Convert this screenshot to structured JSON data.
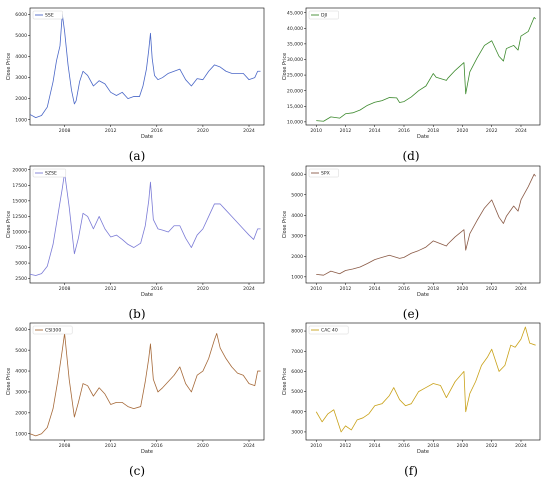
{
  "chart_data": [
    {
      "type": "line",
      "panel_label": "(a)",
      "xlabel": "Date",
      "ylabel": "Close Price",
      "xlim": [
        2005,
        2025.3
      ],
      "ylim": [
        750,
        6300
      ],
      "x_ticks": [
        2008,
        2012,
        2016,
        2020,
        2024
      ],
      "y_ticks": [
        1000,
        2000,
        3000,
        4000,
        5000,
        6000
      ],
      "y_tick_labels": [
        "1000",
        "2000",
        "3000",
        "4000",
        "5000",
        "6000"
      ],
      "legend_position": "top-left",
      "series": [
        {
          "name": "SSE",
          "color": "#4a67c7",
          "x": [
            2005.0,
            2005.5,
            2006.0,
            2006.5,
            2007.0,
            2007.3,
            2007.6,
            2007.8,
            2008.0,
            2008.3,
            2008.6,
            2008.85,
            2009.0,
            2009.3,
            2009.6,
            2010.0,
            2010.5,
            2011.0,
            2011.5,
            2012.0,
            2012.5,
            2013.0,
            2013.5,
            2014.0,
            2014.5,
            2014.8,
            2015.1,
            2015.3,
            2015.45,
            2015.6,
            2015.8,
            2016.1,
            2016.5,
            2017.0,
            2017.5,
            2018.0,
            2018.5,
            2019.0,
            2019.5,
            2020.0,
            2020.5,
            2021.0,
            2021.5,
            2022.0,
            2022.5,
            2023.0,
            2023.5,
            2024.0,
            2024.5,
            2024.75,
            2025.0
          ],
          "values": [
            1250,
            1100,
            1200,
            1600,
            2800,
            3800,
            4500,
            6000,
            5200,
            3600,
            2400,
            1750,
            1900,
            2800,
            3300,
            3100,
            2600,
            2850,
            2700,
            2300,
            2150,
            2300,
            2000,
            2100,
            2100,
            2600,
            3400,
            4300,
            5100,
            3900,
            3100,
            2900,
            3000,
            3200,
            3300,
            3400,
            2900,
            2600,
            2950,
            2900,
            3300,
            3600,
            3500,
            3300,
            3200,
            3200,
            3200,
            2900,
            3000,
            3300,
            3300
          ]
        }
      ]
    },
    {
      "type": "line",
      "panel_label": "(d)",
      "xlabel": "Date",
      "ylabel": "Close Price",
      "xlim": [
        2009.3,
        2025.3
      ],
      "ylim": [
        9000,
        46500
      ],
      "x_ticks": [
        2010,
        2012,
        2014,
        2016,
        2018,
        2020,
        2022,
        2024
      ],
      "y_ticks": [
        10000,
        15000,
        20000,
        25000,
        30000,
        35000,
        40000,
        45000
      ],
      "y_tick_labels": [
        "10,000",
        "15,000",
        "20,000",
        "25,000",
        "30,000",
        "35,000",
        "40,000",
        "45,000"
      ],
      "legend_position": "top-left",
      "series": [
        {
          "name": "DJI",
          "color": "#3d8a2e",
          "x": [
            2010.0,
            2010.5,
            2011.0,
            2011.6,
            2012.0,
            2012.5,
            2013.0,
            2013.5,
            2014.0,
            2014.5,
            2015.0,
            2015.5,
            2015.7,
            2016.0,
            2016.5,
            2017.0,
            2017.5,
            2018.0,
            2018.2,
            2018.9,
            2019.0,
            2019.5,
            2020.1,
            2020.22,
            2020.5,
            2021.0,
            2021.5,
            2022.0,
            2022.5,
            2022.8,
            2023.0,
            2023.5,
            2023.8,
            2024.0,
            2024.5,
            2024.9,
            2025.0
          ],
          "values": [
            10400,
            10200,
            11600,
            11200,
            12600,
            12900,
            13800,
            15300,
            16300,
            16800,
            17800,
            17700,
            16200,
            16500,
            18000,
            20000,
            21500,
            25500,
            24300,
            23300,
            24000,
            26500,
            29000,
            19000,
            26000,
            30500,
            34500,
            36000,
            31000,
            29500,
            33500,
            34500,
            33000,
            37500,
            39000,
            43500,
            43000
          ]
        }
      ]
    },
    {
      "type": "line",
      "panel_label": "(b)",
      "xlabel": "Date",
      "ylabel": "Close Price",
      "xlim": [
        2005,
        2025.3
      ],
      "ylim": [
        1800,
        20600
      ],
      "x_ticks": [
        2008,
        2012,
        2016,
        2020,
        2024
      ],
      "y_ticks": [
        2500,
        5000,
        7500,
        10000,
        12500,
        15000,
        17500,
        20000
      ],
      "y_tick_labels": [
        "2500",
        "5000",
        "7500",
        "10000",
        "12500",
        "15000",
        "17500",
        "20000"
      ],
      "legend_position": "top-left",
      "series": [
        {
          "name": "SZSE",
          "color": "#7b7bd6",
          "x": [
            2005.0,
            2005.5,
            2006.0,
            2006.5,
            2007.0,
            2007.4,
            2007.8,
            2008.0,
            2008.4,
            2008.85,
            2009.2,
            2009.6,
            2010.0,
            2010.5,
            2011.0,
            2011.5,
            2012.0,
            2012.5,
            2013.0,
            2013.5,
            2014.0,
            2014.6,
            2015.0,
            2015.3,
            2015.45,
            2015.7,
            2016.1,
            2016.5,
            2017.0,
            2017.5,
            2018.0,
            2018.5,
            2019.0,
            2019.5,
            2020.0,
            2020.5,
            2021.0,
            2021.5,
            2022.0,
            2022.5,
            2023.0,
            2023.5,
            2024.0,
            2024.4,
            2024.75,
            2025.0
          ],
          "values": [
            3200,
            3000,
            3300,
            4500,
            8000,
            12500,
            17000,
            19500,
            14000,
            6500,
            9000,
            13000,
            12500,
            10500,
            12500,
            10500,
            9200,
            9500,
            8800,
            8000,
            7500,
            8200,
            11000,
            15000,
            18000,
            12000,
            10500,
            10300,
            10000,
            11000,
            11000,
            9000,
            7500,
            9500,
            10500,
            12500,
            14500,
            14500,
            13500,
            12500,
            11500,
            10500,
            9500,
            8800,
            10500,
            10500
          ]
        }
      ]
    },
    {
      "type": "line",
      "panel_label": "(e)",
      "xlabel": "Date",
      "ylabel": "Close Price",
      "xlim": [
        2009.3,
        2025.3
      ],
      "ylim": [
        700,
        6400
      ],
      "x_ticks": [
        2010,
        2012,
        2014,
        2016,
        2018,
        2020,
        2022,
        2024
      ],
      "y_ticks": [
        1000,
        2000,
        3000,
        4000,
        5000,
        6000
      ],
      "y_tick_labels": [
        "1000",
        "2000",
        "3000",
        "4000",
        "5000",
        "6000"
      ],
      "legend_position": "top-left",
      "series": [
        {
          "name": "SPX",
          "color": "#8a5a46",
          "x": [
            2010.0,
            2010.5,
            2011.0,
            2011.6,
            2012.0,
            2012.5,
            2013.0,
            2013.5,
            2014.0,
            2014.5,
            2015.0,
            2015.7,
            2016.0,
            2016.5,
            2017.0,
            2017.5,
            2018.0,
            2018.9,
            2019.0,
            2019.5,
            2020.1,
            2020.22,
            2020.5,
            2021.0,
            2021.5,
            2022.0,
            2022.5,
            2022.8,
            2023.0,
            2023.5,
            2023.8,
            2024.0,
            2024.5,
            2024.9,
            2025.0
          ],
          "values": [
            1120,
            1080,
            1280,
            1150,
            1310,
            1380,
            1480,
            1650,
            1840,
            1950,
            2050,
            1900,
            1950,
            2150,
            2280,
            2450,
            2750,
            2500,
            2600,
            2950,
            3300,
            2300,
            3100,
            3750,
            4350,
            4750,
            3900,
            3600,
            3950,
            4450,
            4200,
            4750,
            5400,
            6000,
            5900
          ]
        }
      ]
    },
    {
      "type": "line",
      "panel_label": "(c)",
      "xlabel": "Date",
      "ylabel": "Close Price",
      "xlim": [
        2005,
        2025.3
      ],
      "ylim": [
        700,
        6300
      ],
      "x_ticks": [
        2008,
        2012,
        2016,
        2020,
        2024
      ],
      "y_ticks": [
        1000,
        2000,
        3000,
        4000,
        5000,
        6000
      ],
      "y_tick_labels": [
        "1000",
        "2000",
        "3000",
        "4000",
        "5000",
        "6000"
      ],
      "legend_position": "top-left",
      "series": [
        {
          "name": "CSI300",
          "color": "#a66a3a",
          "x": [
            2005.0,
            2005.5,
            2006.0,
            2006.5,
            2007.0,
            2007.4,
            2007.8,
            2008.0,
            2008.4,
            2008.85,
            2009.2,
            2009.6,
            2010.0,
            2010.5,
            2011.0,
            2011.5,
            2012.0,
            2012.5,
            2013.0,
            2013.5,
            2014.0,
            2014.6,
            2015.0,
            2015.3,
            2015.45,
            2015.7,
            2016.1,
            2016.5,
            2017.0,
            2017.5,
            2018.0,
            2018.5,
            2019.0,
            2019.5,
            2020.0,
            2020.5,
            2021.0,
            2021.2,
            2021.5,
            2022.0,
            2022.5,
            2023.0,
            2023.5,
            2024.0,
            2024.5,
            2024.75,
            2025.0
          ],
          "values": [
            1000,
            900,
            1000,
            1300,
            2200,
            3500,
            5000,
            5800,
            3600,
            1800,
            2500,
            3400,
            3300,
            2800,
            3200,
            2900,
            2400,
            2500,
            2500,
            2300,
            2200,
            2300,
            3500,
            4600,
            5300,
            3600,
            3000,
            3200,
            3500,
            3800,
            4200,
            3400,
            3000,
            3800,
            4000,
            4600,
            5500,
            5800,
            5100,
            4600,
            4200,
            3900,
            3800,
            3400,
            3300,
            4000,
            4000
          ]
        }
      ]
    },
    {
      "type": "line",
      "panel_label": "(f)",
      "xlabel": "Date",
      "ylabel": "Close Price",
      "xlim": [
        2009.3,
        2025.3
      ],
      "ylim": [
        2600,
        8400
      ],
      "x_ticks": [
        2010,
        2012,
        2014,
        2016,
        2018,
        2020,
        2022,
        2024
      ],
      "y_ticks": [
        3000,
        4000,
        5000,
        6000,
        7000,
        8000
      ],
      "y_tick_labels": [
        "3000",
        "4000",
        "5000",
        "6000",
        "7000",
        "8000"
      ],
      "legend_position": "top-left",
      "series": [
        {
          "name": "CAC 40",
          "color": "#c9a21a",
          "x": [
            2010.0,
            2010.4,
            2010.8,
            2011.2,
            2011.7,
            2012.0,
            2012.4,
            2012.8,
            2013.2,
            2013.6,
            2014.0,
            2014.5,
            2015.0,
            2015.3,
            2015.7,
            2016.1,
            2016.5,
            2017.0,
            2017.5,
            2018.0,
            2018.5,
            2018.9,
            2019.5,
            2020.1,
            2020.22,
            2020.5,
            2020.9,
            2021.3,
            2021.7,
            2022.0,
            2022.5,
            2022.9,
            2023.3,
            2023.6,
            2024.0,
            2024.3,
            2024.6,
            2025.0
          ],
          "values": [
            4000,
            3500,
            3900,
            4100,
            3000,
            3300,
            3100,
            3600,
            3700,
            3900,
            4300,
            4400,
            4800,
            5200,
            4600,
            4300,
            4400,
            5000,
            5200,
            5400,
            5300,
            4700,
            5500,
            6000,
            4000,
            4900,
            5500,
            6300,
            6700,
            7100,
            6000,
            6300,
            7300,
            7200,
            7600,
            8200,
            7400,
            7300
          ]
        }
      ]
    }
  ]
}
